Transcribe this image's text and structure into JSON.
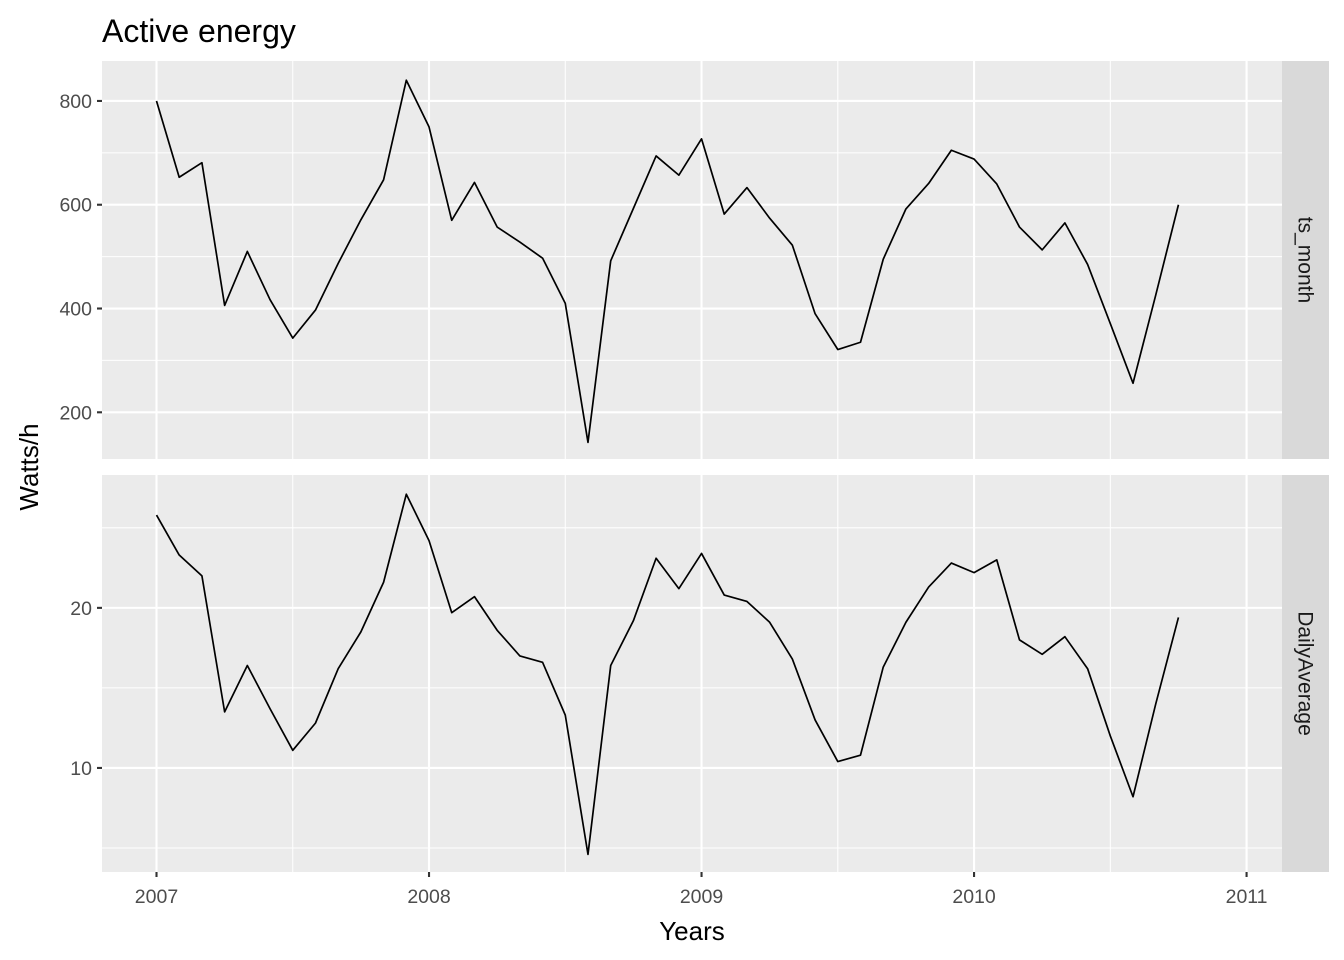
{
  "chart_data": {
    "type": "line",
    "title": "Active energy",
    "xlabel": "Years",
    "ylabel": "Watts/h",
    "xlim": [
      2006.8,
      2011.13
    ],
    "x_ticks": [
      2007,
      2008,
      2009,
      2010,
      2011
    ],
    "x_tick_labels": [
      "2007",
      "2008",
      "2009",
      "2010",
      "2011"
    ],
    "grid": true,
    "legend": "none",
    "line_color": "#000000",
    "x": [
      2007.0,
      2007.0833,
      2007.1667,
      2007.25,
      2007.3333,
      2007.4167,
      2007.5,
      2007.5833,
      2007.6667,
      2007.75,
      2007.8333,
      2007.9167,
      2008.0,
      2008.0833,
      2008.1667,
      2008.25,
      2008.3333,
      2008.4167,
      2008.5,
      2008.5833,
      2008.6667,
      2008.75,
      2008.8333,
      2008.9167,
      2009.0,
      2009.0833,
      2009.1667,
      2009.25,
      2009.3333,
      2009.4167,
      2009.5,
      2009.5833,
      2009.6667,
      2009.75,
      2009.8333,
      2009.9167,
      2010.0,
      2010.0833,
      2010.1667,
      2010.25,
      2010.3333,
      2010.4167,
      2010.5,
      2010.5833,
      2010.6667,
      2010.75
    ],
    "panels": [
      {
        "strip": "ts_month",
        "ylim": [
          110,
          877
        ],
        "y_ticks": [
          200,
          400,
          600,
          800
        ],
        "y_tick_labels": [
          "200",
          "400",
          "600",
          "800"
        ],
        "values": [
          800,
          653,
          681,
          406,
          510,
          417,
          343,
          397,
          487,
          571,
          648,
          840,
          750,
          570,
          643,
          557,
          528,
          497,
          410,
          142,
          492,
          593,
          694,
          657,
          727,
          582,
          633,
          574,
          522,
          390,
          321,
          335,
          495,
          592,
          641,
          705,
          688,
          640,
          557,
          513,
          565,
          485,
          371,
          256,
          426,
          600
        ]
      },
      {
        "strip": "DailyAverage",
        "ylim": [
          3.5,
          28.3
        ],
        "y_ticks": [
          10,
          20
        ],
        "y_tick_labels": [
          "10",
          "20"
        ],
        "values": [
          25.8,
          23.3,
          22.0,
          13.5,
          16.4,
          13.7,
          11.1,
          12.8,
          16.2,
          18.5,
          21.6,
          27.1,
          24.2,
          19.7,
          20.7,
          18.6,
          17.0,
          16.6,
          13.3,
          4.6,
          16.4,
          19.2,
          23.1,
          21.2,
          23.4,
          20.8,
          20.4,
          19.1,
          16.8,
          13.0,
          10.4,
          10.8,
          16.3,
          19.1,
          21.3,
          22.8,
          22.2,
          23.0,
          18.0,
          17.1,
          18.2,
          16.2,
          12.0,
          8.2,
          14.0,
          19.4
        ]
      }
    ]
  }
}
